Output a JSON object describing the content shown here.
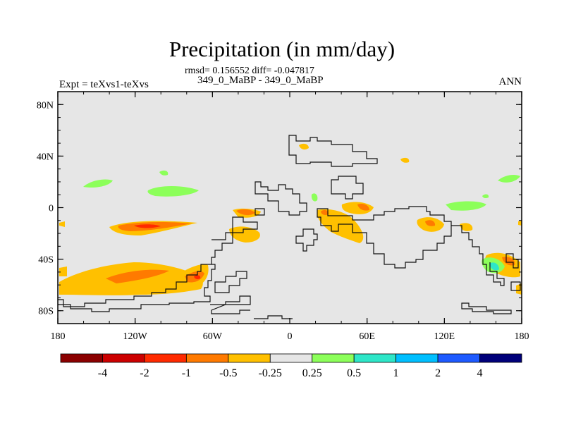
{
  "title": "Precipitation (in mm/day)",
  "stats": "rmsd= 0.156552 diff= -0.047817",
  "subtitle": "349_0_MaBP - 349_0_MaBP",
  "experiment": "Expt = teXvs1-teXvs",
  "season": "ANN",
  "lat_ticks": [
    {
      "value": 80,
      "label": "80N"
    },
    {
      "value": 40,
      "label": "40N"
    },
    {
      "value": 0,
      "label": "0"
    },
    {
      "value": -40,
      "label": "40S"
    },
    {
      "value": -80,
      "label": "80S"
    }
  ],
  "lon_ticks": [
    {
      "value": -180,
      "label": "180"
    },
    {
      "value": -120,
      "label": "120W"
    },
    {
      "value": -60,
      "label": "60W"
    },
    {
      "value": 0,
      "label": "0"
    },
    {
      "value": 60,
      "label": "60E"
    },
    {
      "value": 120,
      "label": "120E"
    },
    {
      "value": 180,
      "label": "180"
    }
  ],
  "colorbar": {
    "colors": [
      "#8b0000",
      "#cc0000",
      "#ff2a00",
      "#ff7a00",
      "#ffc000",
      "#e6e6e6",
      "#8cff5a",
      "#2ee6c8",
      "#00bfff",
      "#1e5aff",
      "#00007a"
    ],
    "labels": [
      "-4",
      "-2",
      "-1",
      "-0.5",
      "-0.25",
      "0.25",
      "0.5",
      "1",
      "2",
      "4"
    ]
  },
  "colors": {
    "background": "#e6e6e6",
    "neg_light": "#ffc000",
    "neg_mid": "#ff7a00",
    "neg_strong": "#ff2a00",
    "pos_light": "#8cff5a",
    "pos_mid": "#2ee6c8"
  }
}
